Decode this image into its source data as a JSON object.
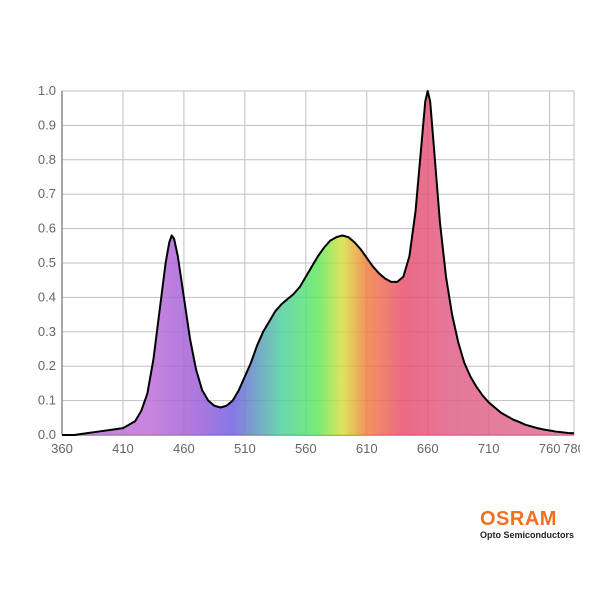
{
  "spectrum_chart": {
    "type": "area",
    "xlim": [
      360,
      780
    ],
    "ylim": [
      0.0,
      1.0
    ],
    "xtick_step": 50,
    "xtick_extra": [
      780
    ],
    "ytick_step": 0.1,
    "background_color": "#ffffff",
    "grid_color": "#bfbfbf",
    "grid_width": 1,
    "axis_color": "#888888",
    "tick_label_color": "#666666",
    "tick_label_fontsize": 13,
    "curve_stroke": "#000000",
    "curve_stroke_width": 2,
    "fill_opacity": 0.85,
    "gradient_stops": [
      {
        "x": 360,
        "color": "#b070d0"
      },
      {
        "x": 430,
        "color": "#c070d8"
      },
      {
        "x": 470,
        "color": "#a060d8"
      },
      {
        "x": 500,
        "color": "#7060e0"
      },
      {
        "x": 540,
        "color": "#50d0a0"
      },
      {
        "x": 570,
        "color": "#60e860"
      },
      {
        "x": 590,
        "color": "#d8e040"
      },
      {
        "x": 610,
        "color": "#f08040"
      },
      {
        "x": 640,
        "color": "#e85070"
      },
      {
        "x": 680,
        "color": "#e06088"
      },
      {
        "x": 780,
        "color": "#e07090"
      }
    ],
    "curve": [
      {
        "x": 360,
        "y": 0.0
      },
      {
        "x": 370,
        "y": 0.0
      },
      {
        "x": 380,
        "y": 0.005
      },
      {
        "x": 390,
        "y": 0.01
      },
      {
        "x": 400,
        "y": 0.015
      },
      {
        "x": 410,
        "y": 0.02
      },
      {
        "x": 415,
        "y": 0.03
      },
      {
        "x": 420,
        "y": 0.04
      },
      {
        "x": 425,
        "y": 0.07
      },
      {
        "x": 430,
        "y": 0.12
      },
      {
        "x": 435,
        "y": 0.22
      },
      {
        "x": 440,
        "y": 0.36
      },
      {
        "x": 445,
        "y": 0.5
      },
      {
        "x": 448,
        "y": 0.56
      },
      {
        "x": 450,
        "y": 0.58
      },
      {
        "x": 452,
        "y": 0.57
      },
      {
        "x": 455,
        "y": 0.52
      },
      {
        "x": 460,
        "y": 0.4
      },
      {
        "x": 465,
        "y": 0.28
      },
      {
        "x": 470,
        "y": 0.19
      },
      {
        "x": 475,
        "y": 0.13
      },
      {
        "x": 480,
        "y": 0.1
      },
      {
        "x": 485,
        "y": 0.085
      },
      {
        "x": 490,
        "y": 0.08
      },
      {
        "x": 495,
        "y": 0.085
      },
      {
        "x": 500,
        "y": 0.1
      },
      {
        "x": 505,
        "y": 0.13
      },
      {
        "x": 510,
        "y": 0.17
      },
      {
        "x": 515,
        "y": 0.21
      },
      {
        "x": 520,
        "y": 0.26
      },
      {
        "x": 525,
        "y": 0.3
      },
      {
        "x": 530,
        "y": 0.33
      },
      {
        "x": 535,
        "y": 0.36
      },
      {
        "x": 540,
        "y": 0.38
      },
      {
        "x": 545,
        "y": 0.395
      },
      {
        "x": 550,
        "y": 0.41
      },
      {
        "x": 555,
        "y": 0.43
      },
      {
        "x": 560,
        "y": 0.46
      },
      {
        "x": 565,
        "y": 0.49
      },
      {
        "x": 570,
        "y": 0.52
      },
      {
        "x": 575,
        "y": 0.545
      },
      {
        "x": 580,
        "y": 0.565
      },
      {
        "x": 585,
        "y": 0.575
      },
      {
        "x": 590,
        "y": 0.58
      },
      {
        "x": 595,
        "y": 0.575
      },
      {
        "x": 600,
        "y": 0.56
      },
      {
        "x": 605,
        "y": 0.54
      },
      {
        "x": 610,
        "y": 0.515
      },
      {
        "x": 615,
        "y": 0.49
      },
      {
        "x": 620,
        "y": 0.47
      },
      {
        "x": 625,
        "y": 0.455
      },
      {
        "x": 630,
        "y": 0.445
      },
      {
        "x": 635,
        "y": 0.445
      },
      {
        "x": 640,
        "y": 0.46
      },
      {
        "x": 645,
        "y": 0.52
      },
      {
        "x": 650,
        "y": 0.65
      },
      {
        "x": 655,
        "y": 0.85
      },
      {
        "x": 658,
        "y": 0.97
      },
      {
        "x": 660,
        "y": 1.0
      },
      {
        "x": 662,
        "y": 0.97
      },
      {
        "x": 665,
        "y": 0.84
      },
      {
        "x": 670,
        "y": 0.62
      },
      {
        "x": 675,
        "y": 0.46
      },
      {
        "x": 680,
        "y": 0.35
      },
      {
        "x": 685,
        "y": 0.27
      },
      {
        "x": 690,
        "y": 0.21
      },
      {
        "x": 695,
        "y": 0.17
      },
      {
        "x": 700,
        "y": 0.14
      },
      {
        "x": 705,
        "y": 0.115
      },
      {
        "x": 710,
        "y": 0.095
      },
      {
        "x": 715,
        "y": 0.08
      },
      {
        "x": 720,
        "y": 0.065
      },
      {
        "x": 725,
        "y": 0.055
      },
      {
        "x": 730,
        "y": 0.045
      },
      {
        "x": 735,
        "y": 0.038
      },
      {
        "x": 740,
        "y": 0.03
      },
      {
        "x": 745,
        "y": 0.025
      },
      {
        "x": 750,
        "y": 0.02
      },
      {
        "x": 755,
        "y": 0.016
      },
      {
        "x": 760,
        "y": 0.013
      },
      {
        "x": 765,
        "y": 0.01
      },
      {
        "x": 770,
        "y": 0.008
      },
      {
        "x": 775,
        "y": 0.006
      },
      {
        "x": 780,
        "y": 0.005
      }
    ]
  },
  "brand": {
    "name": "OSRAM",
    "sub": "Opto Semiconductors",
    "color": "#f36f21"
  }
}
